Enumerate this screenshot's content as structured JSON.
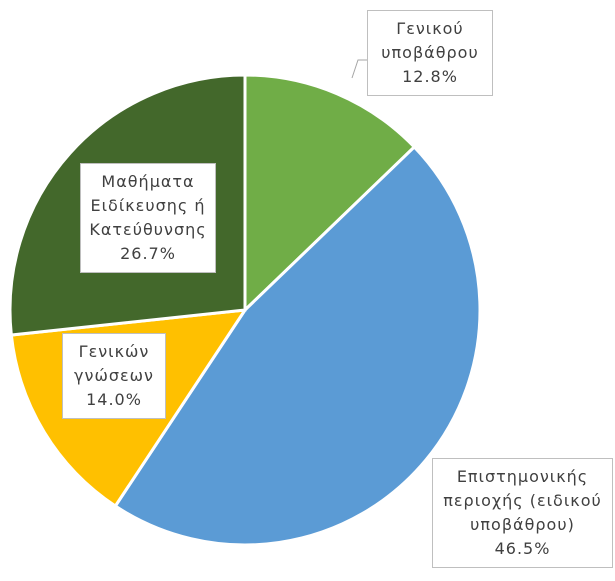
{
  "chart_data": {
    "type": "pie",
    "categories": [
      "Γενικού υποβάθρου",
      "Επιστημονικής περιοχής (ειδικού υποβάθρου)",
      "Γενικών γνώσεων",
      "Μαθήματα Ειδίκευσης ή Κατεύθυνσης"
    ],
    "values": [
      12.8,
      46.5,
      14.0,
      26.7
    ],
    "value_labels": [
      "12.8%",
      "46.5%",
      "14.0%",
      "26.7%"
    ],
    "colors": [
      "#70ad47",
      "#5b9bd5",
      "#ffc000",
      "#43682b"
    ]
  }
}
